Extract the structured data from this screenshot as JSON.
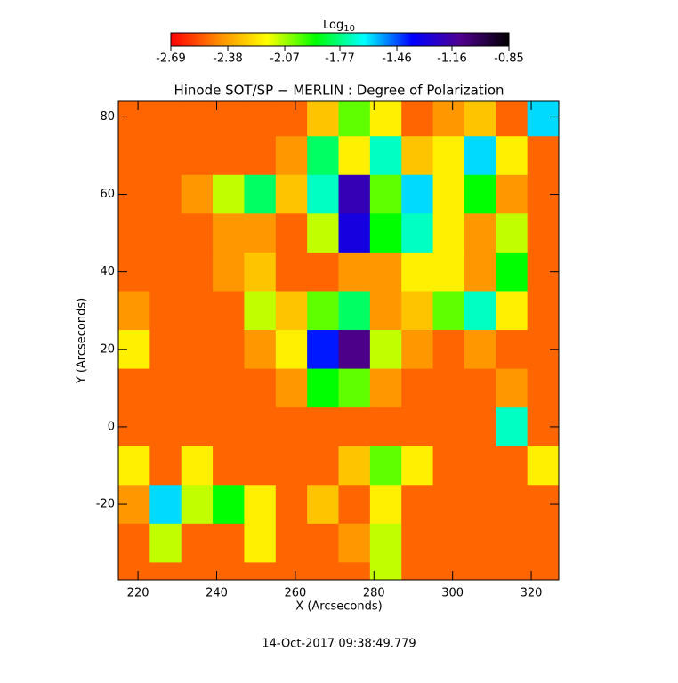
{
  "chart_data": {
    "type": "heatmap",
    "title": "Hinode SOT/SP − MERLIN : Degree of Polarization",
    "xlabel": "X (Arcseconds)",
    "ylabel": "Y (Arcseconds)",
    "footer": "14-Oct-2017 09:38:49.779",
    "colorbar_label": "Log",
    "colorbar_label_sub": "10",
    "clim": [
      -2.69,
      -0.85
    ],
    "colorbar_ticks": [
      -2.69,
      -2.38,
      -2.07,
      -1.77,
      -1.46,
      -1.16,
      -0.85
    ],
    "colormap": [
      "#ff0000",
      "#ff8c00",
      "#ffff00",
      "#00ff00",
      "#00ffff",
      "#0000ff",
      "#500090",
      "#000000"
    ],
    "xlim": [
      215,
      327
    ],
    "ylim": [
      -39.5,
      84
    ],
    "xticks": [
      220,
      240,
      260,
      280,
      300,
      320
    ],
    "yticks": [
      -20,
      0,
      20,
      40,
      60,
      80
    ],
    "x": [
      219,
      227,
      235,
      243,
      251,
      259,
      267,
      275,
      283,
      291,
      299,
      307,
      315,
      323
    ],
    "y": [
      80,
      70,
      60,
      50,
      40,
      30,
      20,
      10,
      0,
      -10,
      -20,
      -30,
      -40
    ],
    "z": [
      [
        -2.5,
        -2.5,
        -2.5,
        -2.5,
        -2.5,
        -2.5,
        -2.3,
        -2.0,
        -2.2,
        -2.5,
        -2.4,
        -2.3,
        -2.5,
        -1.6
      ],
      [
        -2.5,
        -2.5,
        -2.5,
        -2.5,
        -2.5,
        -2.4,
        -1.8,
        -2.2,
        -1.7,
        -2.3,
        -2.2,
        -1.6,
        -2.2,
        -2.5
      ],
      [
        -2.5,
        -2.5,
        -2.4,
        -2.1,
        -1.8,
        -2.3,
        -1.7,
        -1.2,
        -2.0,
        -1.6,
        -2.2,
        -1.9,
        -2.4,
        -2.5
      ],
      [
        -2.5,
        -2.5,
        -2.5,
        -2.4,
        -2.4,
        -2.5,
        -2.1,
        -1.3,
        -1.9,
        -1.7,
        -2.2,
        -2.4,
        -2.1,
        -2.5
      ],
      [
        -2.5,
        -2.5,
        -2.5,
        -2.4,
        -2.3,
        -2.5,
        -2.5,
        -2.4,
        -2.4,
        -2.2,
        -2.2,
        -2.4,
        -1.9,
        -2.5
      ],
      [
        -2.4,
        -2.5,
        -2.5,
        -2.5,
        -2.1,
        -2.3,
        -2.0,
        -1.8,
        -2.4,
        -2.3,
        -2.0,
        -1.7,
        -2.2,
        -2.5
      ],
      [
        -2.2,
        -2.5,
        -2.5,
        -2.5,
        -2.4,
        -2.2,
        -1.4,
        -1.1,
        -2.1,
        -2.4,
        -2.5,
        -2.4,
        -2.5,
        -2.5
      ],
      [
        -2.5,
        -2.5,
        -2.5,
        -2.5,
        -2.5,
        -2.4,
        -1.9,
        -2.0,
        -2.4,
        -2.5,
        -2.5,
        -2.5,
        -2.4,
        -2.5
      ],
      [
        -2.5,
        -2.5,
        -2.5,
        -2.5,
        -2.5,
        -2.5,
        -2.5,
        -2.5,
        -2.5,
        -2.5,
        -2.5,
        -2.5,
        -1.7,
        -2.5
      ],
      [
        -2.2,
        -2.5,
        -2.2,
        -2.5,
        -2.5,
        -2.5,
        -2.5,
        -2.3,
        -2.0,
        -2.2,
        -2.5,
        -2.5,
        -2.5,
        -2.2
      ],
      [
        -2.4,
        -1.6,
        -2.1,
        -1.9,
        -2.2,
        -2.5,
        -2.3,
        -2.5,
        -2.2,
        -2.5,
        -2.5,
        -2.5,
        -2.5,
        -2.5
      ],
      [
        -2.5,
        -2.1,
        -2.5,
        -2.5,
        -2.2,
        -2.5,
        -2.5,
        -2.4,
        -2.1,
        -2.5,
        -2.5,
        -2.5,
        -2.5,
        -2.5
      ],
      [
        -2.5,
        -2.5,
        -2.5,
        -2.5,
        -2.5,
        -2.5,
        -2.5,
        -2.5,
        -2.1,
        -2.5,
        -2.5,
        -2.5,
        -2.5,
        -2.5
      ]
    ]
  }
}
